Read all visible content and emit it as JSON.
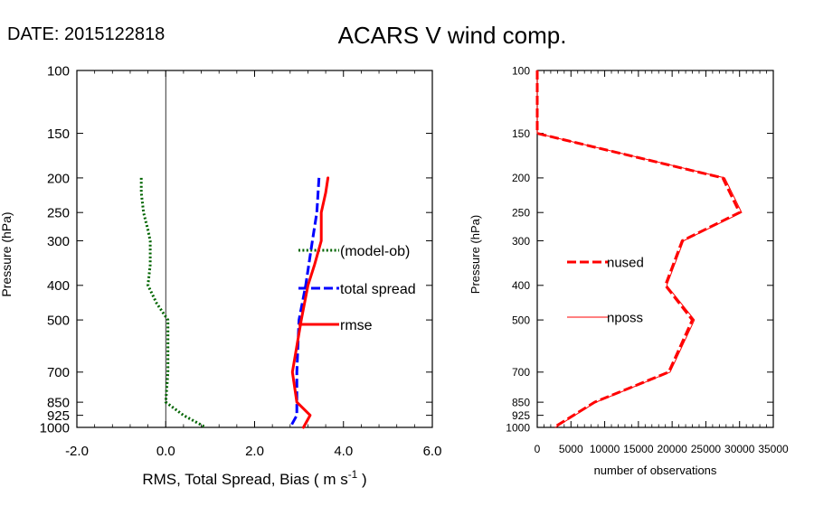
{
  "header": {
    "date_label": "DATE: 2015122818",
    "title": "ACARS V wind comp."
  },
  "chart_data": [
    {
      "type": "line",
      "xlabel": "RMS, Total Spread, Bias ( m s",
      "xlabel_sup": "-1",
      "xlabel_end": " )",
      "ylabel": "Pressure (hPa)",
      "xlim": [
        -2,
        6
      ],
      "ylim": [
        1000,
        100
      ],
      "yscale": "log",
      "xticks": [
        -2,
        0,
        2,
        4,
        6
      ],
      "xtick_labels": [
        "-2.0",
        "0.0",
        "2.0",
        "4.0",
        "6.0"
      ],
      "yticks": [
        100,
        150,
        200,
        250,
        300,
        400,
        500,
        700,
        850,
        925,
        1000
      ],
      "ytick_labels": [
        "100",
        "150",
        "200",
        "250",
        "300",
        "400",
        "500",
        "700",
        "850",
        "925",
        "1000"
      ],
      "zero_line": 0,
      "legend_position": "right",
      "series": [
        {
          "name": "(model-ob)",
          "color": "#006400",
          "style": "dotted",
          "points": [
            [
              -0.55,
              200
            ],
            [
              -0.55,
              220
            ],
            [
              -0.5,
              250
            ],
            [
              -0.4,
              280
            ],
            [
              -0.35,
              300
            ],
            [
              -0.35,
              350
            ],
            [
              -0.4,
              400
            ],
            [
              -0.2,
              450
            ],
            [
              0.05,
              500
            ],
            [
              0.05,
              600
            ],
            [
              0.05,
              700
            ],
            [
              0.0,
              850
            ],
            [
              0.4,
              925
            ],
            [
              0.9,
              1000
            ]
          ]
        },
        {
          "name": "total spread",
          "color": "#0000ff",
          "style": "dashed",
          "points": [
            [
              3.45,
              200
            ],
            [
              3.4,
              250
            ],
            [
              3.3,
              300
            ],
            [
              3.15,
              400
            ],
            [
              3.0,
              500
            ],
            [
              2.95,
              700
            ],
            [
              2.95,
              850
            ],
            [
              2.95,
              925
            ],
            [
              2.8,
              1000
            ]
          ]
        },
        {
          "name": "rmse",
          "color": "#ff0000",
          "style": "solid",
          "points": [
            [
              3.65,
              200
            ],
            [
              3.6,
              220
            ],
            [
              3.5,
              250
            ],
            [
              3.5,
              300
            ],
            [
              3.35,
              350
            ],
            [
              3.2,
              400
            ],
            [
              3.05,
              500
            ],
            [
              2.85,
              700
            ],
            [
              2.95,
              850
            ],
            [
              3.25,
              925
            ],
            [
              3.1,
              1000
            ]
          ]
        }
      ]
    },
    {
      "type": "line",
      "xlabel": "number of observations",
      "ylabel": "Pressure (hPa)",
      "xlim": [
        0,
        35000
      ],
      "ylim": [
        1000,
        100
      ],
      "yscale": "log",
      "xticks": [
        0,
        5000,
        10000,
        15000,
        20000,
        25000,
        30000,
        35000
      ],
      "xtick_labels": [
        "0",
        "5000",
        "10000",
        "15000",
        "20000",
        "25000",
        "30000",
        "35000"
      ],
      "yticks": [
        100,
        150,
        200,
        250,
        300,
        400,
        500,
        700,
        850,
        925,
        1000
      ],
      "ytick_labels": [
        "100",
        "150",
        "200",
        "250",
        "300",
        "400",
        "500",
        "700",
        "850",
        "925",
        "1000"
      ],
      "legend_position": "left",
      "series": [
        {
          "name": "nused",
          "color": "#ff0000",
          "style": "dashed",
          "points": [
            [
              0,
              100
            ],
            [
              0,
              150
            ],
            [
              27500,
              200
            ],
            [
              30000,
              250
            ],
            [
              21500,
              300
            ],
            [
              19000,
              400
            ],
            [
              23000,
              500
            ],
            [
              19500,
              700
            ],
            [
              8500,
              850
            ],
            [
              2500,
              1000
            ]
          ]
        },
        {
          "name": "nposs",
          "color": "#ff0000",
          "style": "thin",
          "points": [
            [
              0,
              100
            ],
            [
              0,
              150
            ],
            [
              27800,
              200
            ],
            [
              30300,
              250
            ],
            [
              21700,
              300
            ],
            [
              19200,
              400
            ],
            [
              23300,
              500
            ],
            [
              19700,
              700
            ],
            [
              8700,
              850
            ],
            [
              2700,
              1000
            ]
          ]
        }
      ]
    }
  ]
}
